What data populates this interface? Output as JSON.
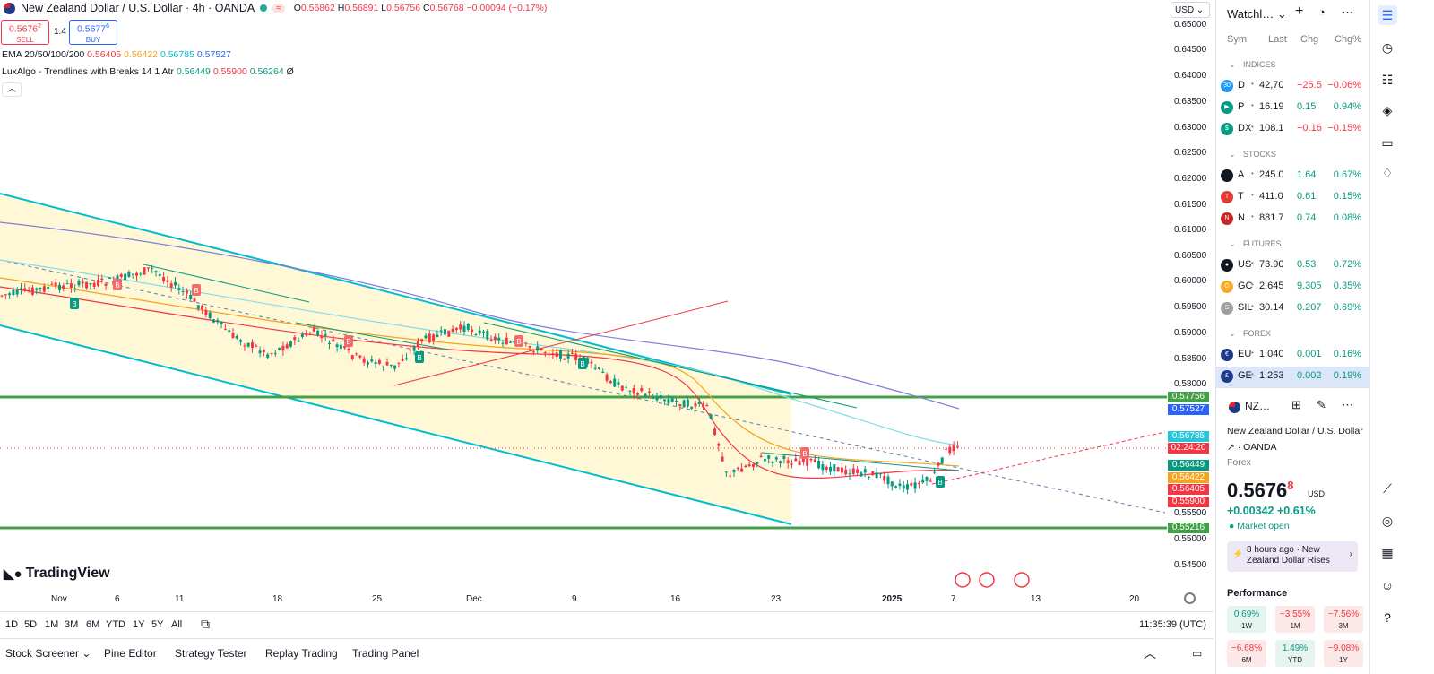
{
  "header": {
    "symbol_title": "New Zealand Dollar / U.S. Dollar · 4h · OANDA",
    "open_label": "O",
    "open": "0.56862",
    "high_label": "H",
    "high": "0.56891",
    "low_label": "L",
    "low": "0.56756",
    "close_label": "C",
    "close": "0.56768",
    "change": "−0.00094 (−0.17%)",
    "sell_price": "0.5676",
    "sell_price_sup": "2",
    "sell_label": "SELL",
    "spread": "1.4",
    "buy_price": "0.5677",
    "buy_price_sup": "6",
    "buy_label": "BUY"
  },
  "indicators": {
    "ema_name": "EMA 20/50/100/200",
    "ema_vals": [
      "0.56405",
      "0.56422",
      "0.56785",
      "0.57527"
    ],
    "lux_name": "LuxAlgo - Trendlines with Breaks 14 1 Atr",
    "lux_vals": [
      "0.56449",
      "0.55900",
      "0.56264"
    ],
    "lux_suffix": "Ø",
    "collapse_icon": "chevron-up-icon"
  },
  "price_axis": {
    "currency": "USD",
    "labels": [
      "0.65000",
      "0.64500",
      "0.64000",
      "0.63500",
      "0.63000",
      "0.62500",
      "0.62000",
      "0.61500",
      "0.61000",
      "0.60500",
      "0.60000",
      "0.59500",
      "0.59000",
      "0.58500",
      "0.58000",
      "0.55500",
      "0.55000",
      "0.54500"
    ],
    "tags": [
      {
        "text": "0.57756",
        "color": "#43a047"
      },
      {
        "text": "0.57527",
        "color": "#2962ff"
      },
      {
        "text": "0.56785",
        "color": "#26c6da"
      },
      {
        "text": "02:24:20",
        "color": "#f23645"
      },
      {
        "text": "0.56449",
        "color": "#089981"
      },
      {
        "text": "0.56422",
        "color": "#f7a21b"
      },
      {
        "text": "0.56405",
        "color": "#f23645"
      },
      {
        "text": "0.55900",
        "color": "#f23645"
      },
      {
        "text": "0.55216",
        "color": "#43a047"
      }
    ]
  },
  "time_axis": {
    "labels": [
      "Nov",
      "6",
      "11",
      "18",
      "25",
      "Dec",
      "9",
      "16",
      "23",
      "2025",
      "7",
      "13",
      "20"
    ]
  },
  "range_bar": {
    "ranges": [
      "1D",
      "5D",
      "1M",
      "3M",
      "6M",
      "YTD",
      "1Y",
      "5Y",
      "All"
    ],
    "clock": "11:35:39 (UTC)"
  },
  "bottom_tabs": [
    "Stock Screener",
    "Pine Editor",
    "Strategy Tester",
    "Replay Trading",
    "Trading Panel"
  ],
  "brand": "TradingView",
  "watchlist": {
    "title": "Watchl…",
    "col_sym": "Sym",
    "col_last": "Last",
    "col_chg": "Chg",
    "col_chgp": "Chg%",
    "sections": [
      {
        "name": "INDICES",
        "rows": [
          {
            "icon": "30",
            "icon_color": "#2196f3",
            "sym": "D",
            "last": "42,70",
            "chg": "−25.5",
            "pct": "−0.06%",
            "dir": "down"
          },
          {
            "icon": "▶",
            "icon_color": "#089981",
            "sym": "P",
            "last": "16.19",
            "chg": "0.15",
            "pct": "0.94%",
            "dir": "up"
          },
          {
            "icon": "$",
            "icon_color": "#089981",
            "sym": "DX",
            "last": "108.1",
            "chg": "−0.16",
            "pct": "−0.15%",
            "dir": "down"
          }
        ]
      },
      {
        "name": "STOCKS",
        "rows": [
          {
            "icon": "",
            "icon_color": "#131722",
            "sym": "A",
            "last": "245.0",
            "chg": "1.64",
            "pct": "0.67%",
            "dir": "up"
          },
          {
            "icon": "T",
            "icon_color": "#e53935",
            "sym": "T",
            "last": "411.0",
            "chg": "0.61",
            "pct": "0.15%",
            "dir": "up"
          },
          {
            "icon": "N",
            "icon_color": "#c62828",
            "sym": "N",
            "last": "881.7",
            "chg": "0.74",
            "pct": "0.08%",
            "dir": "up"
          }
        ]
      },
      {
        "name": "FUTURES",
        "rows": [
          {
            "icon": "●",
            "icon_color": "#131722",
            "sym": "US",
            "last": "73.90",
            "chg": "0.53",
            "pct": "0.72%",
            "dir": "up"
          },
          {
            "icon": "G",
            "icon_color": "#f9a825",
            "sym": "GC",
            "last": "2,645",
            "chg": "9.305",
            "pct": "0.35%",
            "dir": "up"
          },
          {
            "icon": "S",
            "icon_color": "#9e9e9e",
            "sym": "SIL",
            "last": "30.14",
            "chg": "0.207",
            "pct": "0.69%",
            "dir": "up"
          }
        ]
      },
      {
        "name": "FOREX",
        "rows": [
          {
            "icon": "€",
            "icon_color": "#1e3a8a",
            "sym": "EU",
            "last": "1.040",
            "chg": "0.001",
            "pct": "0.16%",
            "dir": "up"
          },
          {
            "icon": "£",
            "icon_color": "#1e3a8a",
            "sym": "GE",
            "last": "1.253",
            "chg": "0.002",
            "pct": "0.19%",
            "dir": "up",
            "selected": true
          }
        ]
      }
    ]
  },
  "details": {
    "short": "NZ…",
    "name": "New Zealand Dollar / U.S. Dollar",
    "exchange": "OANDA",
    "type": "Forex",
    "price": "0.5676",
    "price_sup": "8",
    "currency": "USD",
    "change": "+0.00342",
    "change_pct": "+0.61%",
    "market": "Market open",
    "news": "8 hours ago · New Zealand Dollar Rises",
    "perf_title": "Performance",
    "perf": [
      {
        "v": "0.69%",
        "p": "1W",
        "dir": "up"
      },
      {
        "v": "−3.55%",
        "p": "1M",
        "dir": "down"
      },
      {
        "v": "−7.56%",
        "p": "3M",
        "dir": "down"
      },
      {
        "v": "−6.68%",
        "p": "6M",
        "dir": "down"
      },
      {
        "v": "1.49%",
        "p": "YTD",
        "dir": "up"
      },
      {
        "v": "−9.08%",
        "p": "1Y",
        "dir": "down"
      }
    ]
  }
}
